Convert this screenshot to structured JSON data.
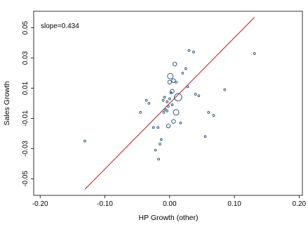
{
  "chart_data": {
    "type": "scatter",
    "xlabel": "HP Growth (other)",
    "ylabel": "Sales Growth",
    "xlim": [
      -0.21,
      0.205
    ],
    "ylim": [
      -0.061,
      0.061
    ],
    "xticks": [
      {
        "value": -0.2,
        "label": "-0.20"
      },
      {
        "value": -0.1,
        "label": "-0.10"
      },
      {
        "value": 0.0,
        "label": "0.00"
      },
      {
        "value": 0.1,
        "label": "0.10"
      },
      {
        "value": 0.2,
        "label": "0.20"
      }
    ],
    "yticks": [
      {
        "value": -0.05,
        "label": "-0.05"
      },
      {
        "value": -0.03,
        "label": "-0.03"
      },
      {
        "value": -0.01,
        "label": "-0.01"
      },
      {
        "value": 0.01,
        "label": "0.01"
      },
      {
        "value": 0.03,
        "label": "0.03"
      },
      {
        "value": 0.05,
        "label": "0.05"
      }
    ],
    "annotation": "slope=0.434",
    "fit_line": {
      "x": [
        -0.131,
        0.131
      ],
      "y": [
        -0.057,
        0.057
      ],
      "color": "#b22222"
    },
    "marker_color": "#1f4e79",
    "grid": false,
    "legend": "none",
    "points": [
      {
        "x": -0.131,
        "y": -0.025,
        "w": 1
      },
      {
        "x": 0.131,
        "y": 0.033,
        "w": 1
      },
      {
        "x": 0.03,
        "y": 0.035,
        "w": 1
      },
      {
        "x": 0.037,
        "y": 0.034,
        "w": 1
      },
      {
        "x": 0.008,
        "y": 0.026,
        "w": 2
      },
      {
        "x": 0.025,
        "y": 0.023,
        "w": 1
      },
      {
        "x": 0.02,
        "y": 0.02,
        "w": 1
      },
      {
        "x": 0.001,
        "y": 0.018,
        "w": 3
      },
      {
        "x": 0.006,
        "y": 0.015,
        "w": 2
      },
      {
        "x": 0.0,
        "y": 0.014,
        "w": 2
      },
      {
        "x": 0.01,
        "y": 0.014,
        "w": 1
      },
      {
        "x": 0.028,
        "y": 0.011,
        "w": 1
      },
      {
        "x": 0.004,
        "y": 0.008,
        "w": 2
      },
      {
        "x": 0.002,
        "y": 0.007,
        "w": 1
      },
      {
        "x": 0.085,
        "y": 0.009,
        "w": 1
      },
      {
        "x": 0.04,
        "y": 0.006,
        "w": 1
      },
      {
        "x": 0.045,
        "y": 0.005,
        "w": 1
      },
      {
        "x": 0.013,
        "y": 0.004,
        "w": 4
      },
      {
        "x": -0.008,
        "y": 0.004,
        "w": 1
      },
      {
        "x": 0.0,
        "y": 0.003,
        "w": 1
      },
      {
        "x": -0.036,
        "y": 0.002,
        "w": 1
      },
      {
        "x": -0.01,
        "y": 0.002,
        "w": 1
      },
      {
        "x": -0.004,
        "y": 0.001,
        "w": 1
      },
      {
        "x": -0.032,
        "y": 0.0,
        "w": 1
      },
      {
        "x": 0.004,
        "y": -0.001,
        "w": 1
      },
      {
        "x": -0.002,
        "y": -0.002,
        "w": 1
      },
      {
        "x": -0.007,
        "y": -0.004,
        "w": 1
      },
      {
        "x": -0.004,
        "y": -0.005,
        "w": 1
      },
      {
        "x": -0.009,
        "y": -0.006,
        "w": 1
      },
      {
        "x": 0.01,
        "y": -0.006,
        "w": 3
      },
      {
        "x": -0.045,
        "y": -0.006,
        "w": 1
      },
      {
        "x": 0.06,
        "y": -0.006,
        "w": 1
      },
      {
        "x": 0.068,
        "y": -0.008,
        "w": 1
      },
      {
        "x": 0.006,
        "y": -0.012,
        "w": 2
      },
      {
        "x": 0.017,
        "y": -0.013,
        "w": 1
      },
      {
        "x": -0.002,
        "y": -0.015,
        "w": 2
      },
      {
        "x": -0.025,
        "y": -0.016,
        "w": 1
      },
      {
        "x": -0.018,
        "y": -0.016,
        "w": 1
      },
      {
        "x": 0.055,
        "y": -0.022,
        "w": 1
      },
      {
        "x": -0.013,
        "y": -0.024,
        "w": 1
      },
      {
        "x": -0.015,
        "y": -0.027,
        "w": 1
      },
      {
        "x": -0.022,
        "y": -0.031,
        "w": 1
      },
      {
        "x": -0.017,
        "y": -0.037,
        "w": 1
      }
    ]
  }
}
